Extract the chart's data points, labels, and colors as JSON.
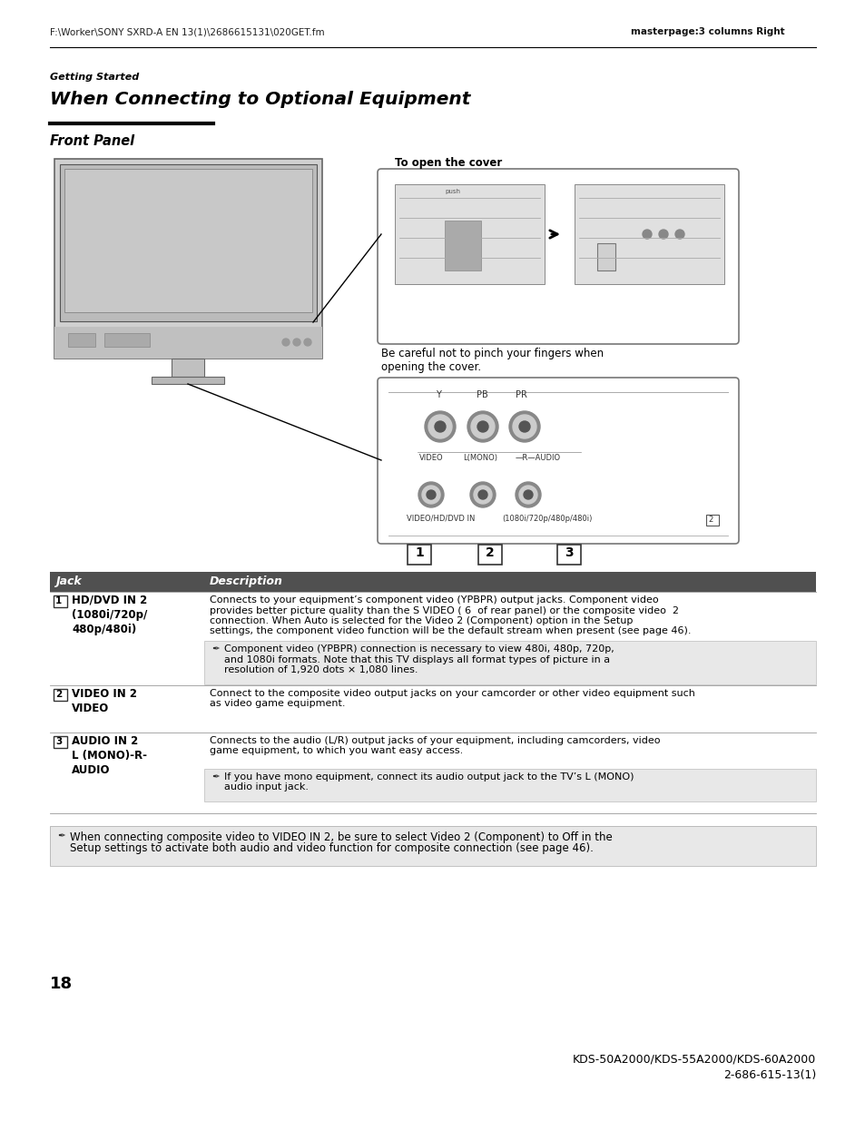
{
  "header_left": "F:\\Worker\\SONY SXRD-A EN 13(1)\\2686615131\\020GET.fm",
  "header_right": "masterpage:3 columns Right",
  "section_label": "Getting Started",
  "title": "When Connecting to Optional Equipment",
  "subtitle": "Front Panel",
  "diagram_caption": "To open the cover",
  "diagram_note": "Be careful not to pinch your fingers when\nopening the cover.",
  "table_header": [
    "Jack",
    "Description"
  ],
  "table_header_bg": "#505050",
  "table_header_color": "#ffffff",
  "table_rows": [
    {
      "num": "1",
      "jack": "HD/DVD IN 2\n(1080i/720p/\n480p/480i)",
      "desc_line1": "Connects to your equipment’s component video (YPBPR) output jacks. Component video",
      "desc_line2": "provides better picture quality than the S VIDEO ( 6  of rear panel) or the composite video  2 ",
      "desc_line3": "connection. When Auto is selected for the Video 2 (Component) option in the Setup",
      "desc_line4": "settings, the component video function will be the default stream when present (see page 46).",
      "note_line1": "Component video (YPBPR) connection is necessary to view 480i, 480p, 720p,",
      "note_line2": "and 1080i formats. Note that this TV displays all format types of picture in a",
      "note_line3": "resolution of 1,920 dots × 1,080 lines.",
      "has_note": true
    },
    {
      "num": "2",
      "jack": "VIDEO IN 2\nVIDEO",
      "desc_line1": "Connect to the composite video output jacks on your camcorder or other video equipment such",
      "desc_line2": "as video game equipment.",
      "desc_line3": "",
      "desc_line4": "",
      "note_line1": "",
      "note_line2": "",
      "note_line3": "",
      "has_note": false
    },
    {
      "num": "3",
      "jack": "AUDIO IN 2\nL (MONO)-R-\nAUDIO",
      "desc_line1": "Connects to the audio (L/R) output jacks of your equipment, including camcorders, video",
      "desc_line2": "game equipment, to which you want easy access.",
      "desc_line3": "",
      "desc_line4": "",
      "note_line1": "If you have mono equipment, connect its audio output jack to the TV’s L (MONO)",
      "note_line2": "audio input jack.",
      "note_line3": "",
      "has_note": true
    }
  ],
  "bottom_note_line1": "When connecting composite video to VIDEO IN 2, be sure to select Video 2 (Component) to Off in the",
  "bottom_note_line2": "Setup settings to activate both audio and video function for composite connection (see page 46).",
  "page_number": "18",
  "model_line1": "KDS-50A2000/KDS-55A2000/KDS-60A2000",
  "model_line2_pre": "2-686-615-",
  "model_line2_bold": "13",
  "model_line2_post": "(1)"
}
